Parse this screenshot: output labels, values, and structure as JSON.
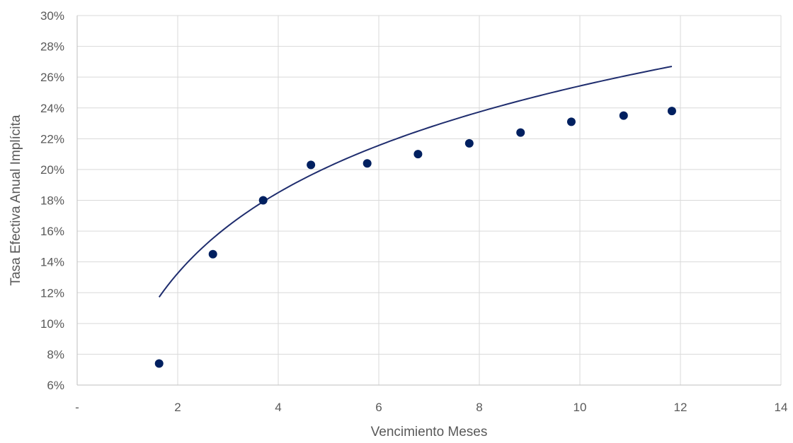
{
  "chart_data": {
    "type": "scatter",
    "title": "",
    "xlabel": "Vencimiento Meses",
    "ylabel": "Tasa Efectiva Anual Implícita",
    "xlim": [
      0,
      14
    ],
    "ylim": [
      0.06,
      0.3
    ],
    "x_ticks": [
      0,
      2,
      4,
      6,
      8,
      10,
      12,
      14
    ],
    "x_tick_labels": [
      "-",
      "2",
      "4",
      "6",
      "8",
      "10",
      "12",
      "14"
    ],
    "y_ticks": [
      0.06,
      0.08,
      0.1,
      0.12,
      0.14,
      0.16,
      0.18,
      0.2,
      0.22,
      0.24,
      0.26,
      0.28,
      0.3
    ],
    "y_tick_labels": [
      "6%",
      "8%",
      "10%",
      "12%",
      "14%",
      "16%",
      "18%",
      "20%",
      "22%",
      "24%",
      "26%",
      "28%",
      "30%"
    ],
    "grid": true,
    "legend": "none",
    "point_color": "#002060",
    "trend_color": "#1f2d6e",
    "series": [
      {
        "x": [
          1.63,
          2.7,
          3.7,
          4.65,
          5.77,
          6.78,
          7.8,
          8.82,
          9.83,
          10.87,
          11.83
        ],
        "values": [
          0.074,
          0.145,
          0.18,
          0.203,
          0.204,
          0.21,
          0.217,
          0.224,
          0.231,
          0.235,
          0.238
        ]
      }
    ],
    "trendline": {
      "type": "logarithmic",
      "x_range": [
        1.63,
        11.83
      ],
      "a": 0.0802,
      "b": 0.0756
    }
  }
}
